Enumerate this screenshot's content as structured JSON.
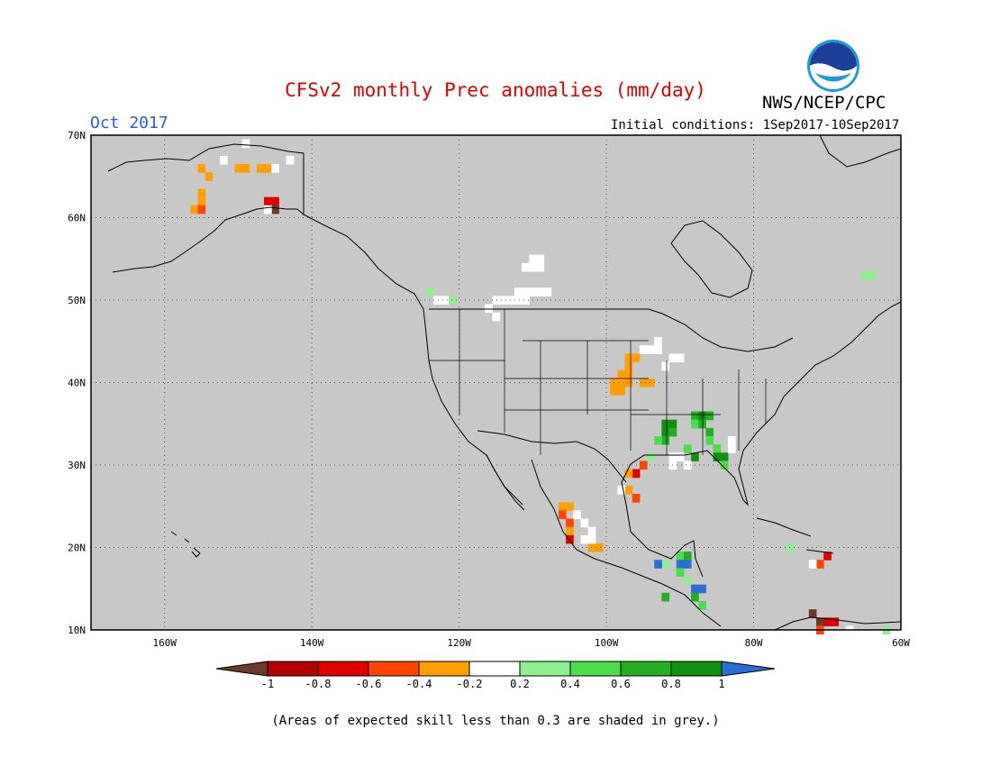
{
  "header": {
    "title": "CFSv2 monthly Prec anomalies (mm/day)",
    "month": "Oct 2017",
    "initial_conditions": "Initial conditions: 1Sep2017-10Sep2017",
    "agency": "NWS/NCEP/CPC",
    "logo_text": "NOAA"
  },
  "map": {
    "projection": "cylindrical",
    "lon_range": [
      -170,
      -60
    ],
    "lat_range": [
      10,
      70
    ],
    "background_color": "#c8c8c8",
    "lat_ticks": [
      "10N",
      "20N",
      "30N",
      "40N",
      "50N",
      "60N",
      "70N"
    ],
    "lon_ticks": [
      "160W",
      "140W",
      "120W",
      "100W",
      "80W",
      "60W"
    ],
    "grid_lines": true
  },
  "colorbar": {
    "labels": [
      "-1",
      "-0.8",
      "-0.6",
      "-0.4",
      "-0.2",
      "0.2",
      "0.4",
      "0.6",
      "0.8",
      "1"
    ],
    "colors": [
      "#6b3a2a",
      "#b30000",
      "#e00000",
      "#ff4500",
      "#ffa000",
      "#ffffff",
      "#90ee90",
      "#4cdc4c",
      "#22b022",
      "#129012",
      "#2a6fd8"
    ]
  },
  "anomaly_cells": [
    {
      "lon": -155,
      "lat": 66,
      "value": -0.3
    },
    {
      "lon": -154,
      "lat": 65,
      "value": -0.3
    },
    {
      "lon": -155,
      "lat": 63,
      "value": -0.3
    },
    {
      "lon": -155,
      "lat": 62,
      "value": -0.3
    },
    {
      "lon": -156,
      "lat": 61,
      "value": -0.3
    },
    {
      "lon": -155,
      "lat": 61,
      "value": -0.5
    },
    {
      "lon": -150,
      "lat": 66,
      "value": -0.3
    },
    {
      "lon": -149,
      "lat": 66,
      "value": -0.3
    },
    {
      "lon": -147,
      "lat": 66,
      "value": -0.3
    },
    {
      "lon": -146,
      "lat": 66,
      "value": -0.3
    },
    {
      "lon": -145,
      "lat": 66,
      "value": 0.0
    },
    {
      "lon": -146,
      "lat": 62,
      "value": -0.7
    },
    {
      "lon": -145,
      "lat": 62,
      "value": -0.7
    },
    {
      "lon": -145,
      "lat": 61,
      "value": -1.1
    },
    {
      "lon": -146,
      "lat": 61,
      "value": 0.0
    },
    {
      "lon": -149,
      "lat": 69,
      "value": 0.0
    },
    {
      "lon": -152,
      "lat": 67,
      "value": 0.0
    },
    {
      "lon": -143,
      "lat": 67,
      "value": 0.0
    },
    {
      "lon": -110,
      "lat": 55,
      "value": 0.0
    },
    {
      "lon": -109,
      "lat": 55,
      "value": 0.0
    },
    {
      "lon": -111,
      "lat": 54,
      "value": 0.0
    },
    {
      "lon": -110,
      "lat": 54,
      "value": 0.0
    },
    {
      "lon": -109,
      "lat": 54,
      "value": 0.0
    },
    {
      "lon": -112,
      "lat": 51,
      "value": 0.0
    },
    {
      "lon": -111,
      "lat": 51,
      "value": 0.0
    },
    {
      "lon": -110,
      "lat": 51,
      "value": 0.0
    },
    {
      "lon": -109,
      "lat": 51,
      "value": 0.0
    },
    {
      "lon": -108,
      "lat": 51,
      "value": 0.0
    },
    {
      "lon": -115,
      "lat": 50,
      "value": 0.0
    },
    {
      "lon": -114,
      "lat": 50,
      "value": 0.0
    },
    {
      "lon": -113,
      "lat": 50,
      "value": 0.0
    },
    {
      "lon": -112,
      "lat": 50,
      "value": 0.0
    },
    {
      "lon": -111,
      "lat": 50,
      "value": 0.0
    },
    {
      "lon": -116,
      "lat": 49,
      "value": 0.0
    },
    {
      "lon": -115,
      "lat": 48,
      "value": 0.0
    },
    {
      "lon": -124,
      "lat": 51,
      "value": 0.3
    },
    {
      "lon": -123,
      "lat": 50,
      "value": 0.0
    },
    {
      "lon": -121,
      "lat": 50,
      "value": 0.3
    },
    {
      "lon": -122,
      "lat": 50,
      "value": 0.0
    },
    {
      "lon": -97,
      "lat": 43,
      "value": -0.3
    },
    {
      "lon": -96,
      "lat": 43,
      "value": -0.3
    },
    {
      "lon": -97,
      "lat": 42,
      "value": -0.3
    },
    {
      "lon": -98,
      "lat": 41,
      "value": -0.3
    },
    {
      "lon": -97,
      "lat": 41,
      "value": -0.3
    },
    {
      "lon": -99,
      "lat": 40,
      "value": -0.3
    },
    {
      "lon": -98,
      "lat": 40,
      "value": -0.3
    },
    {
      "lon": -97,
      "lat": 40,
      "value": -0.3
    },
    {
      "lon": -99,
      "lat": 39,
      "value": -0.3
    },
    {
      "lon": -98,
      "lat": 39,
      "value": -0.3
    },
    {
      "lon": -95,
      "lat": 40,
      "value": -0.3
    },
    {
      "lon": -94,
      "lat": 40,
      "value": -0.3
    },
    {
      "lon": -94,
      "lat": 44,
      "value": 0.0
    },
    {
      "lon": -93,
      "lat": 44,
      "value": 0.0
    },
    {
      "lon": -93,
      "lat": 45,
      "value": 0.0
    },
    {
      "lon": -92,
      "lat": 42,
      "value": 0.0
    },
    {
      "lon": -91,
      "lat": 43,
      "value": 0.0
    },
    {
      "lon": -90,
      "lat": 43,
      "value": 0.0
    },
    {
      "lon": -95,
      "lat": 44,
      "value": 0.0
    },
    {
      "lon": -92,
      "lat": 35,
      "value": 0.9
    },
    {
      "lon": -91,
      "lat": 35,
      "value": 0.9
    },
    {
      "lon": -92,
      "lat": 34,
      "value": 0.9
    },
    {
      "lon": -91,
      "lat": 34,
      "value": 0.7
    },
    {
      "lon": -92,
      "lat": 33,
      "value": 0.7
    },
    {
      "lon": -93,
      "lat": 33,
      "value": 0.5
    },
    {
      "lon": -88,
      "lat": 36,
      "value": 0.7
    },
    {
      "lon": -87,
      "lat": 36,
      "value": 0.9
    },
    {
      "lon": -86,
      "lat": 36,
      "value": 0.7
    },
    {
      "lon": -88,
      "lat": 35,
      "value": 0.5
    },
    {
      "lon": -87,
      "lat": 35,
      "value": 0.7
    },
    {
      "lon": -86,
      "lat": 34,
      "value": 0.7
    },
    {
      "lon": -86,
      "lat": 33,
      "value": 0.5
    },
    {
      "lon": -85,
      "lat": 32,
      "value": 0.5
    },
    {
      "lon": -85,
      "lat": 31,
      "value": 0.9
    },
    {
      "lon": -84,
      "lat": 31,
      "value": 0.9
    },
    {
      "lon": -84,
      "lat": 30,
      "value": 0.5
    },
    {
      "lon": -89,
      "lat": 32,
      "value": 0.5
    },
    {
      "lon": -88,
      "lat": 31,
      "value": 0.9
    },
    {
      "lon": -91,
      "lat": 31,
      "value": 0.0
    },
    {
      "lon": -90,
      "lat": 31,
      "value": 0.0
    },
    {
      "lon": -91,
      "lat": 30,
      "value": 0.0
    },
    {
      "lon": -89,
      "lat": 30,
      "value": 0.0
    },
    {
      "lon": -83,
      "lat": 33,
      "value": 0.0
    },
    {
      "lon": -83,
      "lat": 32,
      "value": 0.0
    },
    {
      "lon": -94,
      "lat": 31,
      "value": 0.3
    },
    {
      "lon": -95,
      "lat": 30,
      "value": -0.5
    },
    {
      "lon": -96,
      "lat": 29,
      "value": -0.7
    },
    {
      "lon": -97,
      "lat": 29,
      "value": -0.3
    },
    {
      "lon": -97,
      "lat": 27,
      "value": -0.3
    },
    {
      "lon": -96,
      "lat": 26,
      "value": -0.5
    },
    {
      "lon": -98,
      "lat": 27,
      "value": 0.0
    },
    {
      "lon": -106,
      "lat": 25,
      "value": -0.3
    },
    {
      "lon": -105,
      "lat": 25,
      "value": -0.3
    },
    {
      "lon": -106,
      "lat": 24,
      "value": -0.5
    },
    {
      "lon": -105,
      "lat": 23,
      "value": -0.5
    },
    {
      "lon": -105,
      "lat": 22,
      "value": -0.3
    },
    {
      "lon": -105,
      "lat": 21,
      "value": -0.7
    },
    {
      "lon": -102,
      "lat": 20,
      "value": -0.3
    },
    {
      "lon": -101,
      "lat": 20,
      "value": -0.3
    },
    {
      "lon": -104,
      "lat": 24,
      "value": 0.0
    },
    {
      "lon": -103,
      "lat": 23,
      "value": 0.0
    },
    {
      "lon": -102,
      "lat": 22,
      "value": 0.0
    },
    {
      "lon": -103,
      "lat": 21,
      "value": 0.0
    },
    {
      "lon": -102,
      "lat": 21,
      "value": 0.0
    },
    {
      "lon": -92,
      "lat": 18,
      "value": 0.3
    },
    {
      "lon": -90,
      "lat": 19,
      "value": 0.5
    },
    {
      "lon": -89,
      "lat": 19,
      "value": 0.7
    },
    {
      "lon": -90,
      "lat": 18,
      "value": 1.1
    },
    {
      "lon": -89,
      "lat": 18,
      "value": 1.1
    },
    {
      "lon": -93,
      "lat": 18,
      "value": 1.1
    },
    {
      "lon": -90,
      "lat": 17,
      "value": 0.5
    },
    {
      "lon": -89,
      "lat": 16,
      "value": 0.3
    },
    {
      "lon": -88,
      "lat": 15,
      "value": 1.1
    },
    {
      "lon": -87,
      "lat": 15,
      "value": 1.1
    },
    {
      "lon": -88,
      "lat": 14,
      "value": 0.7
    },
    {
      "lon": -87,
      "lat": 13,
      "value": 0.5
    },
    {
      "lon": -92,
      "lat": 14,
      "value": 0.7
    },
    {
      "lon": -70,
      "lat": 19,
      "value": -0.7
    },
    {
      "lon": -71,
      "lat": 18,
      "value": -0.5
    },
    {
      "lon": -72,
      "lat": 18,
      "value": 0.0
    },
    {
      "lon": -75,
      "lat": 20,
      "value": 0.3
    },
    {
      "lon": -70,
      "lat": 11,
      "value": -0.7
    },
    {
      "lon": -69,
      "lat": 11,
      "value": -0.7
    },
    {
      "lon": -71,
      "lat": 11,
      "value": -1.1
    },
    {
      "lon": -71,
      "lat": 10,
      "value": -0.5
    },
    {
      "lon": -72,
      "lat": 12,
      "value": -1.1
    },
    {
      "lon": -67,
      "lat": 10,
      "value": 0.0
    },
    {
      "lon": -62,
      "lat": 10,
      "value": 0.3
    },
    {
      "lon": -65,
      "lat": 53,
      "value": 0.3
    },
    {
      "lon": -64,
      "lat": 53,
      "value": 0.3
    }
  ],
  "footer": {
    "note": "(Areas of expected skill less than 0.3 are shaded in grey.)"
  }
}
